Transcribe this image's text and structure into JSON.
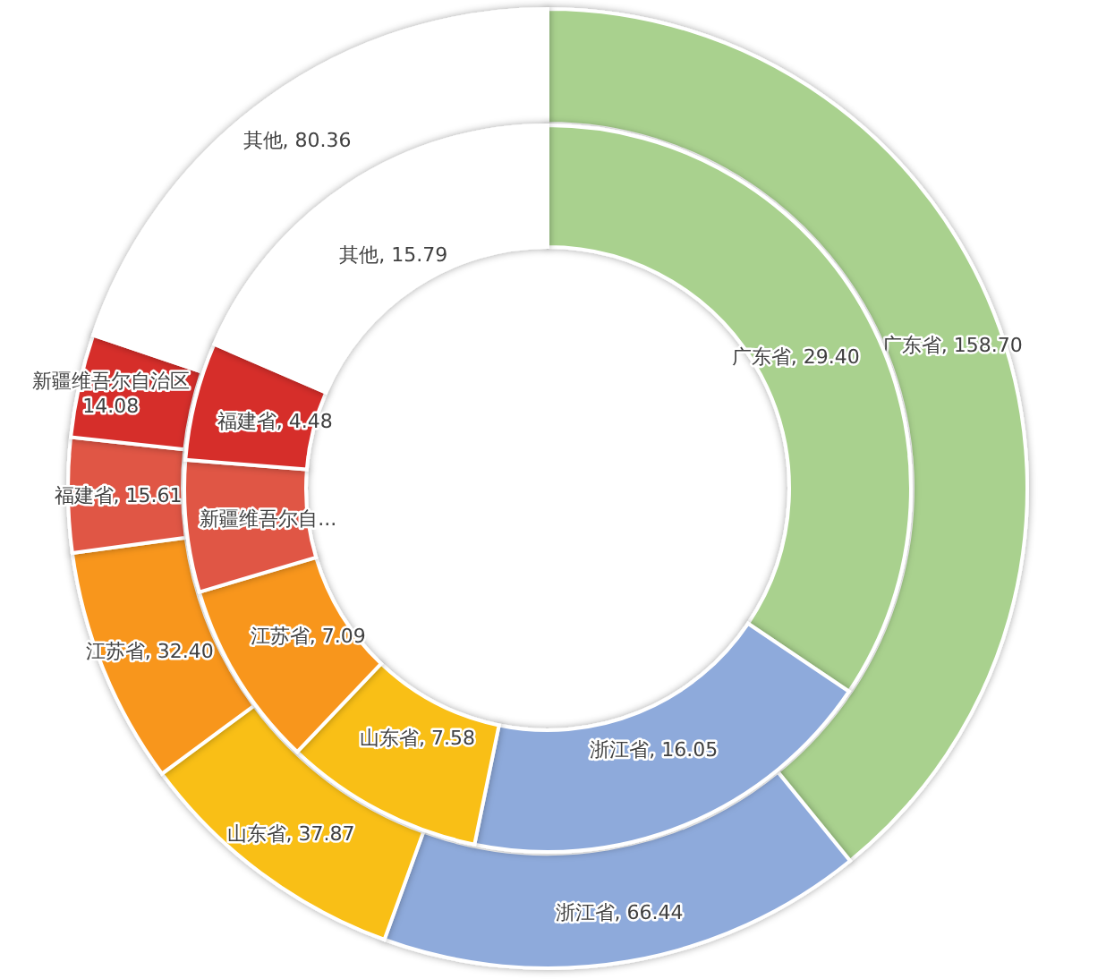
{
  "chart_data": [
    {
      "type": "donut",
      "categories": [
        "广东省",
        "浙江省",
        "山东省",
        "江苏省",
        "福建省",
        "新疆维吾尔自治区",
        "其他"
      ],
      "values": [
        158.7,
        66.44,
        37.87,
        32.4,
        15.61,
        14.08,
        80.36
      ],
      "colors": [
        "#a9d18e",
        "#8eaadb",
        "#f9bf14",
        "#f8961c",
        "#e05745",
        "#d62e2b",
        "#ffffff"
      ],
      "value_labels": [
        "158.70",
        "66.44",
        "37.87",
        "32.40",
        "15.61",
        "14.08",
        "80.36"
      ]
    },
    {
      "type": "donut",
      "categories": [
        "广东省",
        "浙江省",
        "山东省",
        "江苏省",
        "新疆维吾尔自...",
        "福建省",
        "其他"
      ],
      "values": [
        29.4,
        16.05,
        7.58,
        7.09,
        5.0,
        4.48,
        15.79
      ],
      "colors": [
        "#a9d18e",
        "#8eaadb",
        "#f9bf14",
        "#f8961c",
        "#e05745",
        "#d62e2b",
        "#ffffff"
      ],
      "value_labels": [
        "29.40",
        "16.05",
        "7.58",
        "7.09",
        null,
        "4.48",
        "15.79"
      ]
    }
  ]
}
